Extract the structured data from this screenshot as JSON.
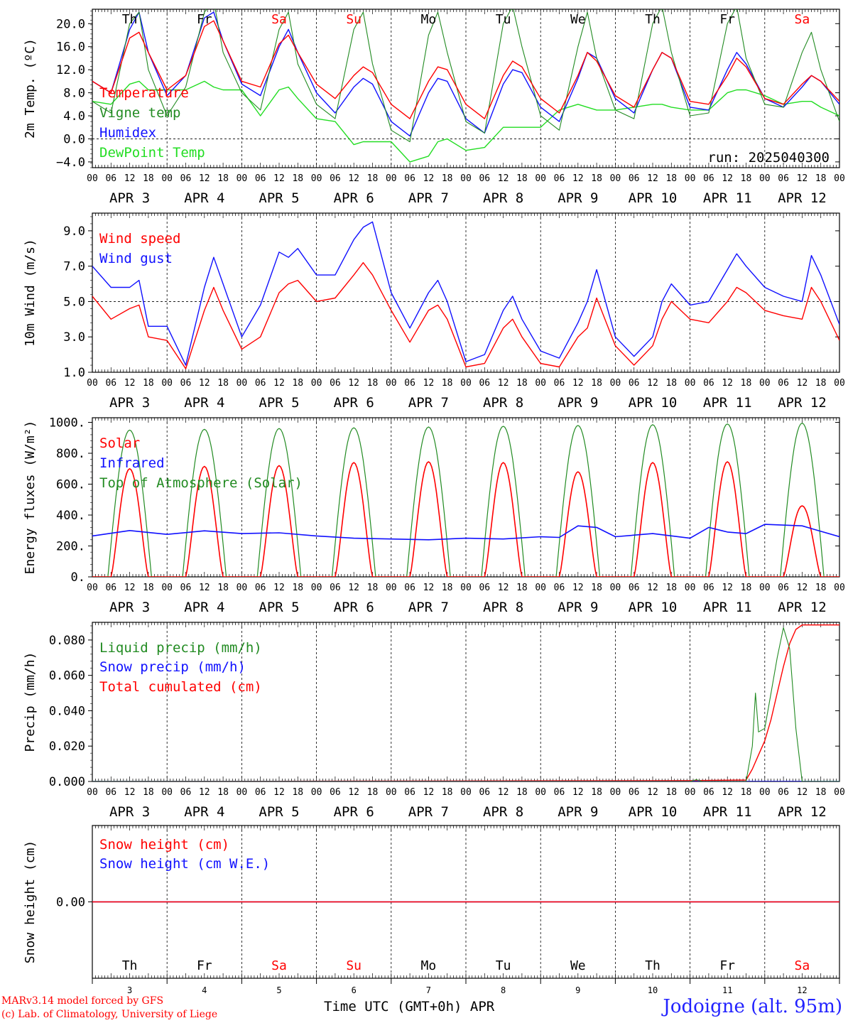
{
  "run_label": "run: 2025040300",
  "footer": {
    "credit_line1": "MARv3.14 model forced by GFS",
    "credit_line2": "(c) Lab. of Climatology, University of Liege",
    "xlabel": "Time UTC (GMT+0h) APR",
    "station": "Jodoigne (alt. 95m)"
  },
  "time_axis": {
    "hour_ticks": [
      "00",
      "06",
      "12",
      "18"
    ],
    "end_tick": "00",
    "date_labels": [
      "APR  3",
      "APR  4",
      "APR  5",
      "APR  6",
      "APR  7",
      "APR  8",
      "APR  9",
      "APR 10",
      "APR 11",
      "APR 12"
    ],
    "weekdays": [
      "Th",
      "Fr",
      "Sa",
      "Su",
      "Mo",
      "Tu",
      "We",
      "Th",
      "Fr",
      "Sa"
    ],
    "weekend_flags": [
      false,
      false,
      true,
      true,
      false,
      false,
      false,
      false,
      false,
      true
    ],
    "day_numbers": [
      "3",
      "4",
      "5",
      "6",
      "7",
      "8",
      "9",
      "10",
      "11",
      "12"
    ]
  },
  "colors": {
    "red": "#ff0000",
    "dark_green": "#228b22",
    "blue": "#1010ff",
    "light_green": "#22dd22",
    "weekend": "#ff0000",
    "weekday": "#000000"
  },
  "chart_data": [
    {
      "type": "line",
      "ylabel": "2m Temp. (ºC)",
      "ylim": [
        -5,
        22.5
      ],
      "yticks": [
        -4,
        0,
        4,
        8,
        12,
        16,
        20
      ],
      "ytick_labels": [
        "−4.0",
        "0.0",
        "4.0",
        "8.0",
        "12.0",
        "16.0",
        "20.0"
      ],
      "zero_line": 0,
      "show_weekdays": true,
      "x_hours": [
        0,
        6,
        12,
        15,
        18,
        24,
        30,
        36,
        39,
        42,
        48,
        54,
        60,
        63,
        66,
        72,
        78,
        84,
        87,
        90,
        96,
        102,
        108,
        111,
        114,
        120,
        126,
        132,
        135,
        138,
        144,
        150,
        156,
        159,
        162,
        168,
        174,
        180,
        183,
        186,
        192,
        198,
        204,
        207,
        210,
        216,
        222,
        228,
        231,
        234,
        240
      ],
      "series": [
        {
          "name": "Temperature",
          "color": "#ff0000",
          "values": [
            10.0,
            8.0,
            17.5,
            18.5,
            15.0,
            8.5,
            11.0,
            19.5,
            20.5,
            17.0,
            10.0,
            9.0,
            16.5,
            18.0,
            15.0,
            9.5,
            7.0,
            11.0,
            12.5,
            11.5,
            6.0,
            3.5,
            10.0,
            12.5,
            12.0,
            6.0,
            3.5,
            11.0,
            13.5,
            12.5,
            7.0,
            4.5,
            11.0,
            15.0,
            13.5,
            7.5,
            5.5,
            12.0,
            15.0,
            14.0,
            6.5,
            6.0,
            11.0,
            14.0,
            12.5,
            7.0,
            6.0,
            9.5,
            11.0,
            10.0,
            6.5
          ]
        },
        {
          "name": "Vigne temp",
          "color": "#228b22",
          "values": [
            6.5,
            4.5,
            20.0,
            22.0,
            12.0,
            4.0,
            9.0,
            22.0,
            24.0,
            15.0,
            8.0,
            5.0,
            19.0,
            22.0,
            13.0,
            6.0,
            3.5,
            19.0,
            22.0,
            13.0,
            1.5,
            -0.5,
            18.0,
            22.0,
            15.0,
            3.0,
            1.0,
            20.0,
            23.0,
            16.0,
            4.0,
            1.5,
            16.0,
            22.0,
            14.0,
            5.0,
            3.5,
            20.0,
            23.0,
            15.0,
            4.0,
            4.5,
            20.0,
            23.0,
            14.0,
            6.0,
            5.5,
            15.0,
            18.5,
            12.0,
            3.0
          ]
        },
        {
          "name": "Humidex",
          "color": "#1010ff",
          "values": [
            10.0,
            8.0,
            19.0,
            22.0,
            15.0,
            7.5,
            11.0,
            21.0,
            22.0,
            17.0,
            9.5,
            7.5,
            16.0,
            19.0,
            15.0,
            8.0,
            4.5,
            9.0,
            10.5,
            9.5,
            3.0,
            0.5,
            8.0,
            10.5,
            10.0,
            3.5,
            1.0,
            9.5,
            12.0,
            11.5,
            5.5,
            3.0,
            10.5,
            15.0,
            14.0,
            7.0,
            4.5,
            12.0,
            15.0,
            14.0,
            5.5,
            5.0,
            12.0,
            15.0,
            13.0,
            7.0,
            5.5,
            9.0,
            11.0,
            10.0,
            6.0
          ]
        },
        {
          "name": "DewPoint Temp",
          "color": "#22dd22",
          "values": [
            6.5,
            6.0,
            9.5,
            10.0,
            8.5,
            8.5,
            8.5,
            10.0,
            9.0,
            8.5,
            8.5,
            4.0,
            8.5,
            9.0,
            7.0,
            3.5,
            3.0,
            -1.0,
            -0.5,
            -0.5,
            -0.5,
            -4.0,
            -3.0,
            -0.5,
            0.0,
            -2.0,
            -1.5,
            2.0,
            2.0,
            2.0,
            2.0,
            5.0,
            6.0,
            5.5,
            5.0,
            5.0,
            5.5,
            6.0,
            6.0,
            5.5,
            5.0,
            5.0,
            8.0,
            8.5,
            8.5,
            7.5,
            6.0,
            6.5,
            6.5,
            5.5,
            4.0
          ]
        }
      ]
    },
    {
      "type": "line",
      "ylabel": "10m Wind (m/s)",
      "ylim": [
        1,
        10
      ],
      "yticks": [
        1,
        3,
        5,
        7,
        9
      ],
      "ytick_labels": [
        "1.0",
        "3.0",
        "5.0",
        "7.0",
        "9.0"
      ],
      "dashed_line": 5,
      "x_hours": [
        0,
        6,
        12,
        15,
        18,
        24,
        30,
        36,
        39,
        42,
        48,
        54,
        60,
        63,
        66,
        72,
        78,
        84,
        87,
        90,
        96,
        102,
        108,
        111,
        114,
        120,
        126,
        132,
        135,
        138,
        144,
        150,
        156,
        159,
        162,
        168,
        174,
        180,
        183,
        186,
        192,
        198,
        204,
        207,
        210,
        216,
        222,
        228,
        231,
        234,
        240
      ],
      "series": [
        {
          "name": "Wind speed",
          "color": "#ff0000",
          "values": [
            5.3,
            4.0,
            4.6,
            4.8,
            3.0,
            2.8,
            1.2,
            4.5,
            5.8,
            4.5,
            2.3,
            3.0,
            5.5,
            6.0,
            6.2,
            5.0,
            5.2,
            6.5,
            7.2,
            6.5,
            4.5,
            2.7,
            4.5,
            4.8,
            4.0,
            1.3,
            1.5,
            3.5,
            4.0,
            3.0,
            1.5,
            1.3,
            3.0,
            3.5,
            5.2,
            2.5,
            1.4,
            2.5,
            4.0,
            5.0,
            4.0,
            3.8,
            5.0,
            5.8,
            5.5,
            4.5,
            4.2,
            4.0,
            5.8,
            5.0,
            2.8
          ]
        },
        {
          "name": "Wind gust",
          "color": "#1010ff",
          "values": [
            7.0,
            5.8,
            5.8,
            6.2,
            3.6,
            3.6,
            1.4,
            5.8,
            7.5,
            6.0,
            3.0,
            4.8,
            7.8,
            7.5,
            8.0,
            6.5,
            6.5,
            8.5,
            9.2,
            9.5,
            5.5,
            3.5,
            5.5,
            6.2,
            5.0,
            1.6,
            2.0,
            4.5,
            5.3,
            4.0,
            2.2,
            1.8,
            3.8,
            5.0,
            6.8,
            3.0,
            1.9,
            3.0,
            5.0,
            6.0,
            4.8,
            5.0,
            6.8,
            7.7,
            7.0,
            5.8,
            5.3,
            5.0,
            7.6,
            6.5,
            3.7
          ]
        }
      ]
    },
    {
      "type": "line",
      "ylabel": "Energy fluxes (W/m²)",
      "ylim": [
        0,
        1030
      ],
      "yticks": [
        0,
        200,
        400,
        600,
        800,
        1000
      ],
      "ytick_labels": [
        "0.",
        "200.",
        "400.",
        "600.",
        "800.",
        "1000."
      ],
      "solar_peaks": [
        700,
        715,
        720,
        740,
        745,
        740,
        680,
        740,
        745,
        460
      ],
      "toa_peaks": [
        950,
        955,
        960,
        965,
        970,
        975,
        980,
        985,
        990,
        995
      ],
      "infrared": {
        "x_hours": [
          0,
          12,
          24,
          36,
          48,
          60,
          72,
          84,
          96,
          108,
          120,
          132,
          144,
          150,
          156,
          162,
          168,
          180,
          192,
          198,
          204,
          210,
          216,
          228,
          240
        ],
        "values": [
          265,
          300,
          275,
          298,
          280,
          285,
          265,
          250,
          245,
          240,
          250,
          245,
          260,
          255,
          330,
          320,
          260,
          280,
          250,
          320,
          290,
          280,
          340,
          330,
          260
        ]
      },
      "series": [
        {
          "name": "Solar",
          "color": "#ff0000"
        },
        {
          "name": "Infrared",
          "color": "#1010ff"
        },
        {
          "name": "Top of Atmosphere (Solar)",
          "color": "#228b22"
        }
      ]
    },
    {
      "type": "line",
      "ylabel": "Precip (mm/h)",
      "ylim": [
        0,
        0.09
      ],
      "yticks": [
        0,
        0.02,
        0.04,
        0.06,
        0.08
      ],
      "ytick_labels": [
        "0.000",
        "0.020",
        "0.040",
        "0.060",
        "0.080"
      ],
      "series": [
        {
          "name": "Liquid precip (mm/h)",
          "color": "#228b22",
          "x_hours": [
            0,
            192,
            194,
            196,
            210,
            212,
            213,
            214,
            216,
            218,
            220,
            222,
            224,
            226,
            228,
            229,
            230,
            240
          ],
          "values": [
            0,
            0,
            0.001,
            0,
            0,
            0.02,
            0.05,
            0.028,
            0.03,
            0.05,
            0.07,
            0.087,
            0.075,
            0.03,
            0,
            0,
            0,
            0
          ]
        },
        {
          "name": "Snow precip (mm/h)",
          "color": "#1010ff",
          "x_hours": [
            0,
            240
          ],
          "values": [
            0,
            0
          ]
        },
        {
          "name": "Total cumulated (cm)",
          "color": "#ff0000",
          "x_hours": [
            0,
            192,
            210,
            212,
            214,
            216,
            218,
            220,
            222,
            224,
            226,
            228,
            240
          ],
          "values": [
            0,
            0.0005,
            0.0008,
            0.007,
            0.015,
            0.023,
            0.035,
            0.05,
            0.065,
            0.078,
            0.086,
            0.0885,
            0.0885
          ]
        }
      ]
    },
    {
      "type": "line",
      "ylabel": "Snow height (cm)",
      "ylim": [
        -1,
        1
      ],
      "yticks": [
        0
      ],
      "ytick_labels": [
        "0.00"
      ],
      "series": [
        {
          "name": "Snow height (cm)",
          "color": "#ff0000",
          "x_hours": [
            0,
            240
          ],
          "values": [
            0,
            0
          ]
        },
        {
          "name": "Snow height (cm W.E.)",
          "color": "#1010ff",
          "x_hours": [
            0,
            240
          ],
          "values": [
            0,
            0
          ]
        }
      ]
    }
  ]
}
